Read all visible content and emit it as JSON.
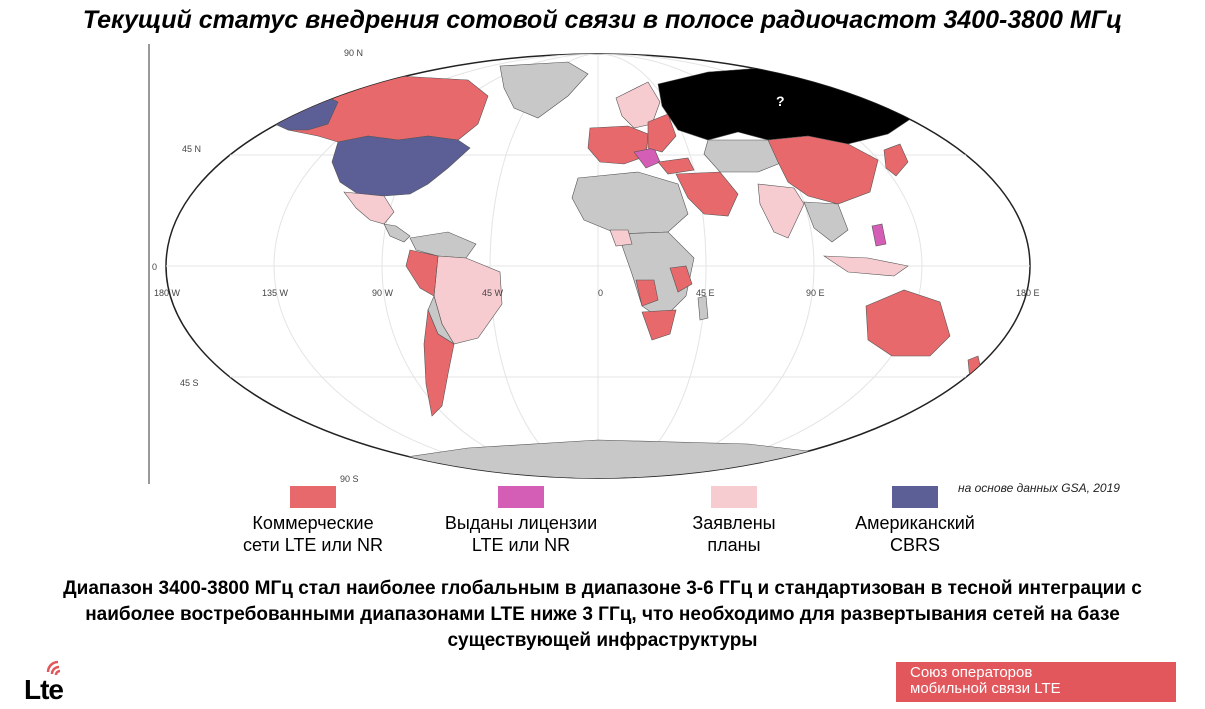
{
  "title": "Текущий статус внедрения сотовой связи в полосе радиочастот 3400-3800 МГц",
  "map": {
    "question_mark": "?",
    "grid_labels": {
      "lat_90n": "90 N",
      "lat_45n": "45 N",
      "lat_0": "0",
      "lat_45s": "45 S",
      "lat_90s": "90 S",
      "lon_180w": "180 W",
      "lon_135w": "135 W",
      "lon_90w": "90 W",
      "lon_45w": "45 W",
      "lon_0": "0",
      "lon_45e": "45 E",
      "lon_90e": "90 E",
      "lon_180e": "180 E"
    },
    "colors": {
      "commercial": "#e8696c",
      "licensed": "#d45eb5",
      "planned": "#f7ccd1",
      "cbrs": "#5b5f95",
      "unknown": "#000000",
      "other": "#c8c8c8"
    }
  },
  "source": "на основе данных GSA, 2019",
  "legend": [
    {
      "label": "Коммерческие\nсети LTE или NR",
      "color": "#e8696c"
    },
    {
      "label": "Выданы лицензии\nLTE или NR",
      "color": "#d45eb5"
    },
    {
      "label": "Заявлены\nпланы",
      "color": "#f7ccd1"
    },
    {
      "label": "Американский\nCBRS",
      "color": "#5b5f95"
    }
  ],
  "note": "Диапазон 3400-3800 МГц стал наиболее глобальным в диапазоне 3-6 ГГц и стандартизован в тесной интеграции с наиболее востребованными диапазонами LTE ниже 3 ГГц, что необходимо для развертывания сетей на базе существующей инфраструктуры",
  "logo": {
    "text": "Lte"
  },
  "brand": {
    "line1": "Союз операторов",
    "line2": "мобильной связи LTE"
  }
}
